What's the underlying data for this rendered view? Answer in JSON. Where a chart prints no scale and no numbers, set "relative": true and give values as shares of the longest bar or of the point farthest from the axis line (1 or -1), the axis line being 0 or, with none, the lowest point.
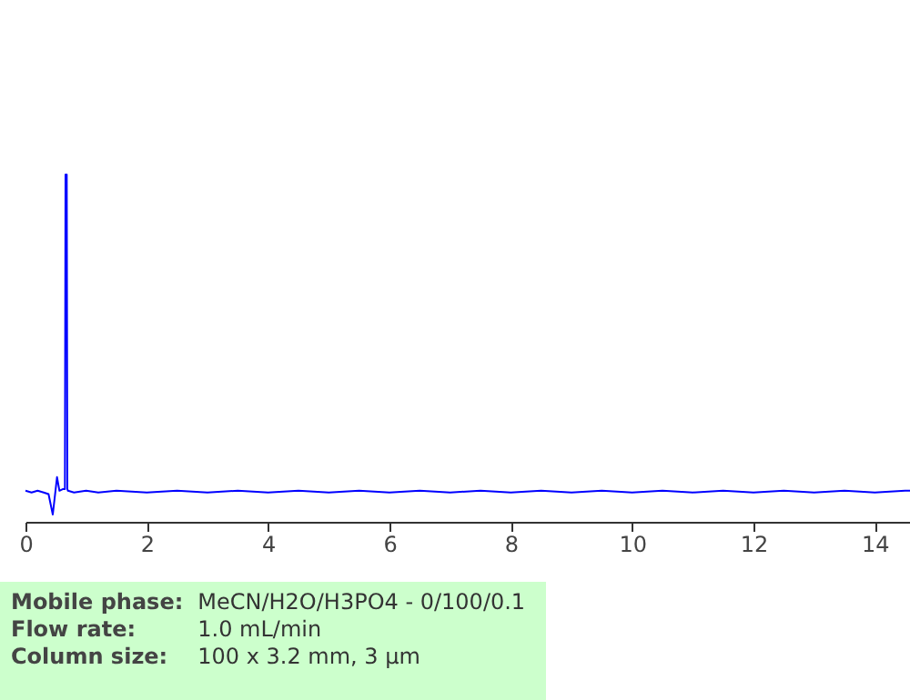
{
  "chart_data": {
    "type": "line",
    "relative": true,
    "color": "#0000ff",
    "tick_labels": "x",
    "x": [
      0,
      0.1,
      0.2,
      0.3,
      0.38,
      0.45,
      0.52,
      0.56,
      0.62,
      0.65,
      0.66,
      0.68,
      0.69,
      0.7,
      0.8,
      1.0,
      1.2,
      1.5,
      2.0,
      2.5,
      3.0,
      3.5,
      4.0,
      4.5,
      5.0,
      5.5,
      6.0,
      6.5,
      7.0,
      7.5,
      8.0,
      8.5,
      9.0,
      9.5,
      10.0,
      10.5,
      11.0,
      11.5,
      12.0,
      12.5,
      13.0,
      13.5,
      14.0,
      14.5,
      14.7
    ],
    "values": [
      0.07,
      0.065,
      0.07,
      0.065,
      0.06,
      0,
      0.11,
      0.07,
      0.075,
      0.075,
      1,
      1,
      0.075,
      0.07,
      0.065,
      0.07,
      0.065,
      0.07,
      0.065,
      0.07,
      0.065,
      0.07,
      0.065,
      0.07,
      0.065,
      0.07,
      0.065,
      0.07,
      0.065,
      0.07,
      0.065,
      0.07,
      0.065,
      0.07,
      0.065,
      0.07,
      0.065,
      0.07,
      0.065,
      0.07,
      0.065,
      0.07,
      0.065,
      0.07,
      0.07
    ],
    "xlim": [
      0,
      14.7
    ],
    "xticks": [
      0,
      2,
      4,
      6,
      8,
      10,
      12,
      14
    ],
    "annotations": [
      "Mobile phase: MeCN/H2O/H3PO4 - 0/100/0.1",
      "Flow rate: 1.0 mL/min",
      "Column size: 100 x 3.2 mm, 3 µm"
    ]
  }
}
